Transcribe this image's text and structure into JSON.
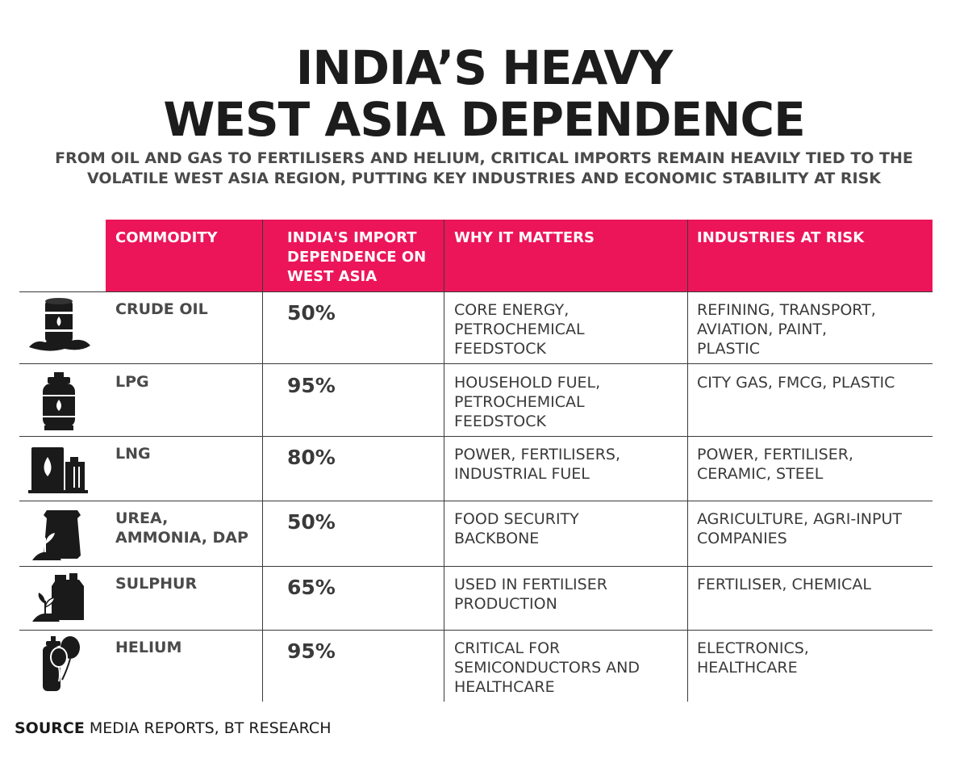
{
  "title": {
    "line1": "INDIA’S HEAVY",
    "line2": "WEST ASIA DEPENDENCE"
  },
  "subtitle": {
    "line1": "FROM OIL AND GAS TO FERTILISERS AND HELIUM, CRITICAL IMPORTS REMAIN HEAVILY TIED TO THE",
    "line2": "VOLATILE WEST ASIA REGION, PUTTING KEY INDUSTRIES AND ECONOMIC STABILITY AT RISK"
  },
  "colors": {
    "header_bg": "#ec1559",
    "text": "#1a1a1a",
    "grid": "#3a3a3a"
  },
  "table": {
    "headers": {
      "commodity": [
        "COMMODITY"
      ],
      "dependence": [
        "INDIA'S IMPORT",
        "DEPENDENCE ON",
        "WEST ASIA"
      ],
      "why": [
        "WHY IT MATTERS"
      ],
      "industries": [
        "INDUSTRIES AT RISK"
      ]
    },
    "rows": [
      {
        "icon": "oil-barrel-icon",
        "commodity": [
          "CRUDE OIL"
        ],
        "dependence": "50%",
        "why": [
          "CORE ENERGY,",
          "PETROCHEMICAL",
          "FEEDSTOCK"
        ],
        "industries": [
          "REFINING, TRANSPORT,",
          "AVIATION, PAINT,",
          "PLASTIC"
        ]
      },
      {
        "icon": "gas-cylinder-icon",
        "commodity": [
          "LPG"
        ],
        "dependence": "95%",
        "why": [
          "HOUSEHOLD FUEL,",
          "PETROCHEMICAL",
          "FEEDSTOCK"
        ],
        "industries": [
          "CITY GAS, FMCG, PLASTIC"
        ]
      },
      {
        "icon": "lng-tank-icon",
        "commodity": [
          "LNG"
        ],
        "dependence": "80%",
        "why": [
          "POWER, FERTILISERS,",
          "INDUSTRIAL FUEL"
        ],
        "industries": [
          "POWER, FERTILISER,",
          "CERAMIC, STEEL"
        ]
      },
      {
        "icon": "fertiliser-bag-icon",
        "commodity": [
          "UREA,",
          "AMMONIA, DAP"
        ],
        "dependence": "50%",
        "why": [
          "FOOD SECURITY",
          "BACKBONE"
        ],
        "industries": [
          "AGRICULTURE, AGRI-INPUT",
          "COMPANIES"
        ]
      },
      {
        "icon": "jerrycan-plant-icon",
        "commodity": [
          "SULPHUR"
        ],
        "dependence": "65%",
        "why": [
          "USED IN FERTILISER",
          "PRODUCTION"
        ],
        "industries": [
          "FERTILISER, CHEMICAL"
        ]
      },
      {
        "icon": "helium-balloons-icon",
        "commodity": [
          "HELIUM"
        ],
        "dependence": "95%",
        "why": [
          "CRITICAL FOR",
          "SEMICONDUCTORS AND",
          "HEALTHCARE"
        ],
        "industries": [
          "ELECTRONICS,",
          "HEALTHCARE"
        ]
      }
    ]
  },
  "source": {
    "label": "SOURCE",
    "text": " MEDIA REPORTS, BT RESEARCH"
  }
}
